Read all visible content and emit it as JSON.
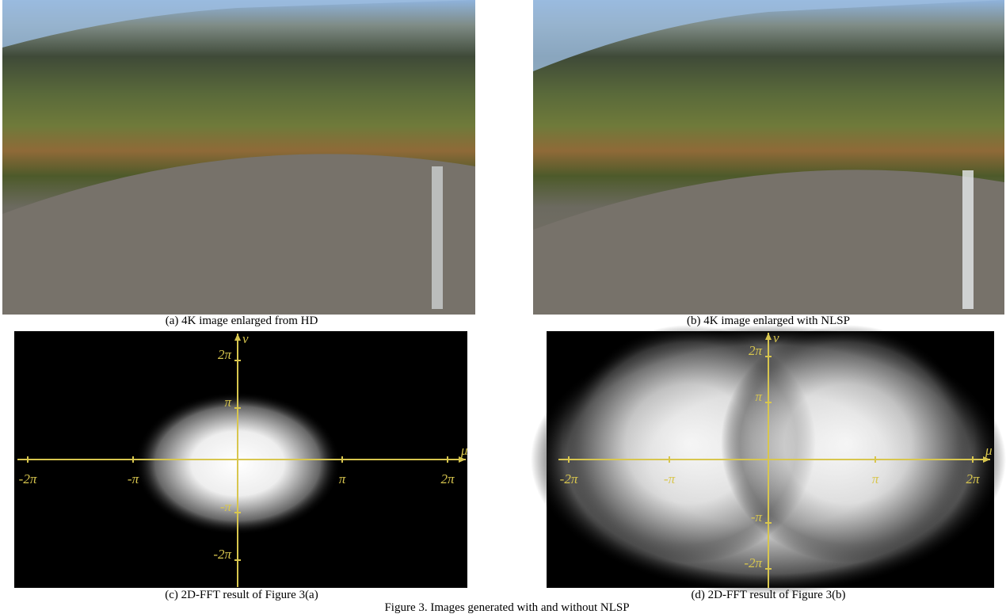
{
  "panels": [
    {
      "caption": "(a) 4K image enlarged from HD"
    },
    {
      "caption": "(b) 4K image enlarged with NLSP"
    },
    {
      "caption": "(c) 2D-FFT result of Figure 3(a)",
      "x_axis": "μ",
      "y_axis": "v",
      "x_ticks": [
        "-2π",
        "-π",
        "π",
        "2π"
      ],
      "y_ticks": [
        "2π",
        "π",
        "-π",
        "-2π"
      ]
    },
    {
      "caption": "(d) 2D-FFT result of Figure 3(b)",
      "x_axis": "μ",
      "y_axis": "v",
      "x_ticks": [
        "-2π",
        "-π",
        "π",
        "2π"
      ],
      "y_ticks": [
        "2π",
        "π",
        "-π",
        "-2π"
      ]
    }
  ],
  "figure_caption": "Figure 3. Images generated with and without NLSP"
}
